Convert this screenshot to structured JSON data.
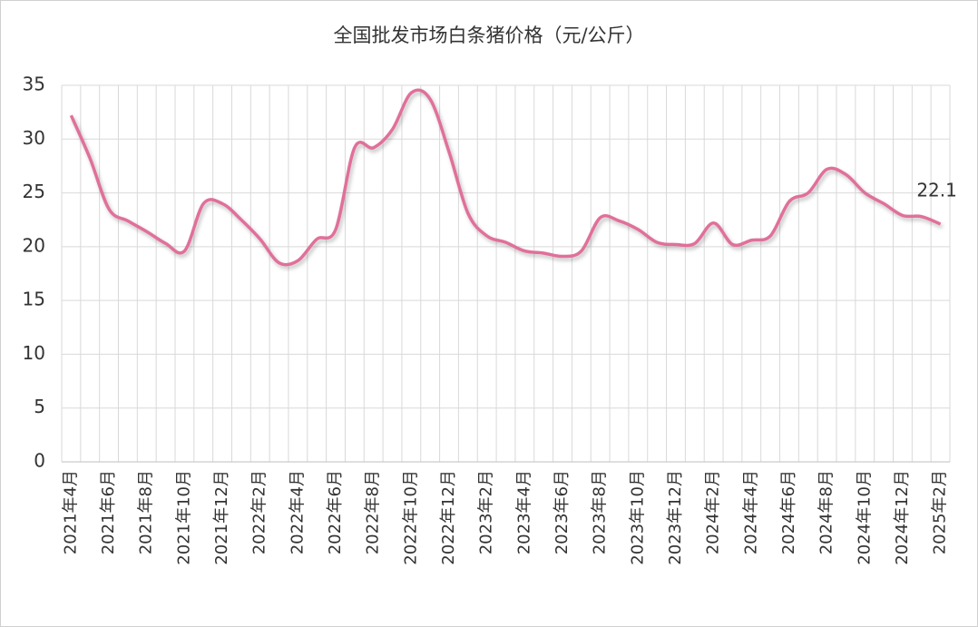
{
  "chart_data": {
    "type": "line",
    "title": "全国批发市场白条猪价格（元/公斤）",
    "categories": [
      "2021年4月",
      null,
      "2021年6月",
      null,
      "2021年8月",
      null,
      "2021年10月",
      null,
      "2021年12月",
      null,
      "2022年2月",
      null,
      "2022年4月",
      null,
      "2022年6月",
      null,
      "2022年8月",
      null,
      "2022年10月",
      null,
      "2022年12月",
      null,
      "2023年2月",
      null,
      "2023年4月",
      null,
      "2023年6月",
      null,
      "2023年8月",
      null,
      "2023年10月",
      null,
      "2023年12月",
      null,
      "2024年2月",
      null,
      "2024年4月",
      null,
      "2024年6月",
      null,
      "2024年8月",
      null,
      "2024年10月",
      null,
      "2024年12月",
      null,
      "2025年2月"
    ],
    "series": [
      {
        "color": "#e0709a",
        "values": [
          32.2,
          28.2,
          23.5,
          22.4,
          21.4,
          20.3,
          19.6,
          24.0,
          24.0,
          22.5,
          20.7,
          18.5,
          18.7,
          20.7,
          21.6,
          29.2,
          29.2,
          30.9,
          34.3,
          33.7,
          28.8,
          23.1,
          21.0,
          20.4,
          19.6,
          19.4,
          19.1,
          19.6,
          22.7,
          22.4,
          21.6,
          20.4,
          20.2,
          20.3,
          22.2,
          20.2,
          20.6,
          21.0,
          24.2,
          25.0,
          27.2,
          26.7,
          25.0,
          24.0,
          22.9,
          22.8,
          22.1
        ]
      }
    ],
    "ylim": [
      0,
      35
    ],
    "yticks": [
      0,
      5,
      10,
      15,
      20,
      25,
      30,
      35
    ],
    "grid": true
  }
}
